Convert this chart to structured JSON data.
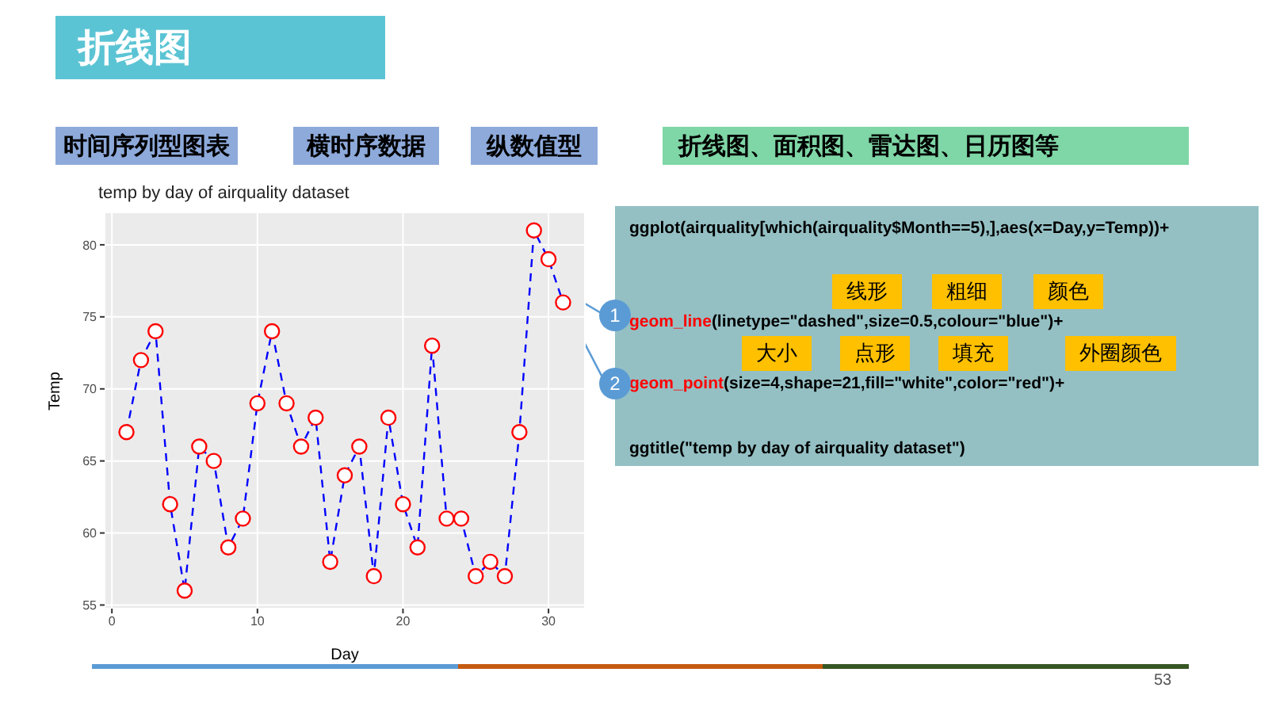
{
  "chart_data": {
    "type": "line",
    "title": "temp by day of airquality dataset",
    "xlabel": "Day",
    "ylabel": "Temp",
    "x": [
      1,
      2,
      3,
      4,
      5,
      6,
      7,
      8,
      9,
      10,
      11,
      12,
      13,
      14,
      15,
      16,
      17,
      18,
      19,
      20,
      21,
      22,
      23,
      24,
      25,
      26,
      27,
      28,
      29,
      30,
      31
    ],
    "series": [
      {
        "color": "#0000ff",
        "line_style": "dashed",
        "marker": "none",
        "values": [
          67,
          72,
          74,
          62,
          56,
          66,
          65,
          59,
          61,
          69,
          74,
          69,
          66,
          68,
          58,
          64,
          66,
          57,
          68,
          62,
          59,
          73,
          61,
          61,
          57,
          58,
          57,
          67,
          81,
          79,
          76
        ]
      },
      {
        "type": "scatter",
        "color": "#ff0000",
        "marker": "circle",
        "values": [
          67,
          72,
          74,
          62,
          56,
          66,
          65,
          59,
          61,
          69,
          74,
          69,
          66,
          68,
          58,
          64,
          66,
          57,
          68,
          62,
          59,
          73,
          61,
          61,
          57,
          58,
          57,
          67,
          81,
          79,
          76
        ]
      }
    ],
    "xlim": [
      -0.5,
      32.5
    ],
    "xticks": [
      0,
      10,
      20,
      30
    ],
    "ylim": [
      54.75,
      82.25
    ],
    "yticks": [
      55,
      60,
      65,
      70,
      75,
      80
    ],
    "grid": true,
    "legend": false,
    "annotations": [
      "折线图",
      "时间序列型图表",
      "横时序数据",
      "纵数值型",
      "折线图、面积图、雷达图、日历图等",
      "ggplot(airquality[which(airquality$Month==5),],aes(x=Day,y=Temp))+",
      "geom_line(linetype=\"dashed\",size=0.5,colour=\"blue\")+",
      "geom_point(size=4,shape=21,fill=\"white\",color=\"red\")+",
      "ggtitle(\"temp by day of airquality dataset\")",
      "线形",
      "粗细",
      "颜色",
      "大小",
      "点形",
      "填充",
      "外圈颜色",
      "1",
      "2",
      "53"
    ]
  }
}
